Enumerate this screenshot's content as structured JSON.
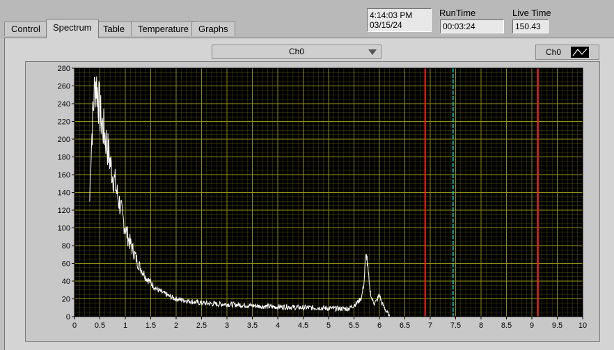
{
  "tabs": [
    {
      "label": "Control",
      "active": false
    },
    {
      "label": "Spectrum",
      "active": true
    },
    {
      "label": "Table",
      "active": false
    },
    {
      "label": "Temperature",
      "active": false
    },
    {
      "label": "Graphs",
      "active": false
    }
  ],
  "datetime": {
    "time": "4:14:03 PM",
    "date": "03/15/24"
  },
  "runtime": {
    "label": "RunTime",
    "value": "00:03:24"
  },
  "livetime": {
    "label": "Live Time",
    "value": "150.43"
  },
  "channel_select": {
    "value": "Ch0"
  },
  "plot_legend": {
    "label": "Ch0"
  },
  "colors": {
    "plot_bg": "#000000",
    "grid": "#a8a818",
    "trace": "#ffffff",
    "cursor_red": "#ff2020",
    "cursor_cyan": "#20d0d0"
  },
  "chart_data": {
    "type": "line",
    "xlim": [
      0,
      10
    ],
    "ylim": [
      0,
      280
    ],
    "xticks": [
      "0",
      "0.5",
      "1",
      "1.5",
      "2",
      "2.5",
      "3",
      "3.5",
      "4",
      "4.5",
      "5",
      "5.5",
      "6",
      "6.5",
      "7",
      "7.5",
      "8",
      "8.5",
      "9",
      "9.5",
      "10"
    ],
    "yticks": [
      "0",
      "20",
      "40",
      "60",
      "80",
      "100",
      "120",
      "140",
      "160",
      "180",
      "200",
      "220",
      "240",
      "260",
      "280"
    ],
    "grid": true,
    "cursors": [
      {
        "x": 6.9,
        "color": "red"
      },
      {
        "x": 7.45,
        "color": "cyan"
      },
      {
        "x": 9.12,
        "color": "red"
      }
    ],
    "series": [
      {
        "x": [
          0.3,
          0.32,
          0.35,
          0.38,
          0.4,
          0.42,
          0.45,
          0.48,
          0.5,
          0.55,
          0.6,
          0.65,
          0.7,
          0.75,
          0.8,
          0.85,
          0.9,
          0.95,
          1.0,
          1.05,
          1.1,
          1.15,
          1.2,
          1.25,
          1.3,
          1.35,
          1.4,
          1.5,
          1.6,
          1.7,
          1.8,
          1.9,
          2.0,
          2.2,
          2.4,
          2.6,
          2.8,
          3.0,
          3.3,
          3.6,
          3.9,
          4.2,
          4.5,
          4.8,
          5.1,
          5.4,
          5.55,
          5.6,
          5.65,
          5.7,
          5.72,
          5.75,
          5.78,
          5.8,
          5.85,
          5.9,
          5.95,
          6.0,
          6.05,
          6.1,
          6.15,
          6.2
        ],
        "values": [
          130,
          180,
          215,
          245,
          260,
          265,
          255,
          240,
          230,
          215,
          205,
          190,
          175,
          160,
          150,
          135,
          125,
          110,
          100,
          90,
          82,
          75,
          68,
          60,
          55,
          50,
          45,
          38,
          32,
          28,
          25,
          22,
          20,
          18,
          16,
          15,
          14,
          14,
          13,
          12,
          11,
          11,
          10,
          10,
          9,
          9,
          15,
          18,
          22,
          40,
          60,
          70,
          50,
          35,
          20,
          15,
          18,
          25,
          15,
          10,
          5,
          0
        ]
      }
    ]
  }
}
